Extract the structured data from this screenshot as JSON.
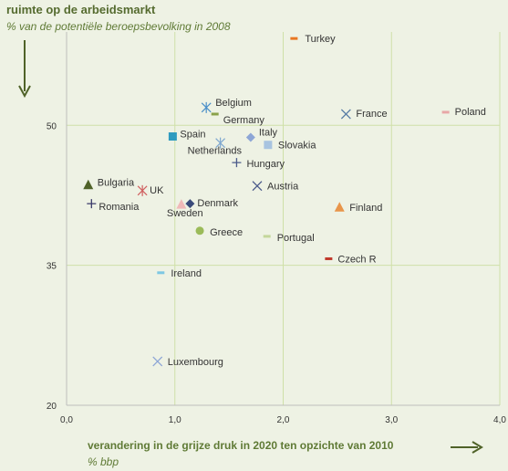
{
  "chart_data": {
    "type": "scatter",
    "title": "ruimte op de arbeidsmarkt",
    "subtitle": "% van de potentiële beroepsbevolking in 2008",
    "xlabel": "verandering in de grijze druk in 2020  ten opzichte van 2010",
    "xunit": "% bbp",
    "xlim": [
      0,
      4
    ],
    "ylim": [
      20,
      60
    ],
    "xticks": [
      "0,0",
      "1,0",
      "2,0",
      "3,0",
      "4,0"
    ],
    "xtick_values": [
      0,
      1,
      2,
      3,
      4
    ],
    "yticks": [
      "20",
      "35",
      "50"
    ],
    "ytick_values": [
      20,
      35,
      50
    ],
    "grid": true,
    "points": [
      {
        "label": "Turkey",
        "x": 2.1,
        "y": 59.3,
        "marker": "dash",
        "color": "#e87722"
      },
      {
        "label": "Belgium",
        "x": 1.29,
        "y": 51.9,
        "marker": "asterisk",
        "color": "#4a8fc8"
      },
      {
        "label": "Germany",
        "x": 1.37,
        "y": 51.2,
        "marker": "dash",
        "color": "#8aa24a"
      },
      {
        "label": "France",
        "x": 2.58,
        "y": 51.2,
        "marker": "x",
        "color": "#5b7fa6"
      },
      {
        "label": "Poland",
        "x": 3.5,
        "y": 51.4,
        "marker": "dash",
        "color": "#e8a7a7"
      },
      {
        "label": "Italy",
        "x": 1.7,
        "y": 48.7,
        "marker": "diamond",
        "color": "#8da6d6"
      },
      {
        "label": "Spain",
        "x": 0.98,
        "y": 48.8,
        "marker": "square",
        "color": "#2e9bbf"
      },
      {
        "label": "Netherlands",
        "x": 1.42,
        "y": 48.1,
        "marker": "asterisk",
        "color": "#7fa8d0"
      },
      {
        "label": "Slovakia",
        "x": 1.86,
        "y": 47.9,
        "marker": "square",
        "color": "#a8c4e0"
      },
      {
        "label": "Hungary",
        "x": 1.57,
        "y": 46.0,
        "marker": "plus",
        "color": "#4a5a8a"
      },
      {
        "label": "Bulgaria",
        "x": 0.2,
        "y": 43.6,
        "marker": "triangle",
        "color": "#4f6228"
      },
      {
        "label": "Austria",
        "x": 1.76,
        "y": 43.5,
        "marker": "x",
        "color": "#4a5a8a"
      },
      {
        "label": "UK",
        "x": 0.7,
        "y": 43.0,
        "marker": "asterisk",
        "color": "#d06060"
      },
      {
        "label": "Romania",
        "x": 0.23,
        "y": 41.6,
        "marker": "plus",
        "color": "#3a3a6a"
      },
      {
        "label": "Denmark",
        "x": 1.14,
        "y": 41.6,
        "marker": "diamond",
        "color": "#3a4a7a"
      },
      {
        "label": "Sweden",
        "x": 1.06,
        "y": 41.5,
        "marker": "triangle",
        "color": "#f0b8b8"
      },
      {
        "label": "Finland",
        "x": 2.52,
        "y": 41.2,
        "marker": "triangle",
        "color": "#e8954a"
      },
      {
        "label": "Greece",
        "x": 1.23,
        "y": 38.7,
        "marker": "circle",
        "color": "#9bbb59"
      },
      {
        "label": "Portugal",
        "x": 1.85,
        "y": 38.1,
        "marker": "dash",
        "color": "#c4d79b"
      },
      {
        "label": "Czech R",
        "x": 2.42,
        "y": 35.7,
        "marker": "dash",
        "color": "#c0392b"
      },
      {
        "label": "Ireland",
        "x": 0.87,
        "y": 34.2,
        "marker": "dash",
        "color": "#7ec8e3"
      },
      {
        "label": "Luxembourg",
        "x": 0.84,
        "y": 24.7,
        "marker": "x",
        "color": "#8da6d6"
      }
    ]
  }
}
